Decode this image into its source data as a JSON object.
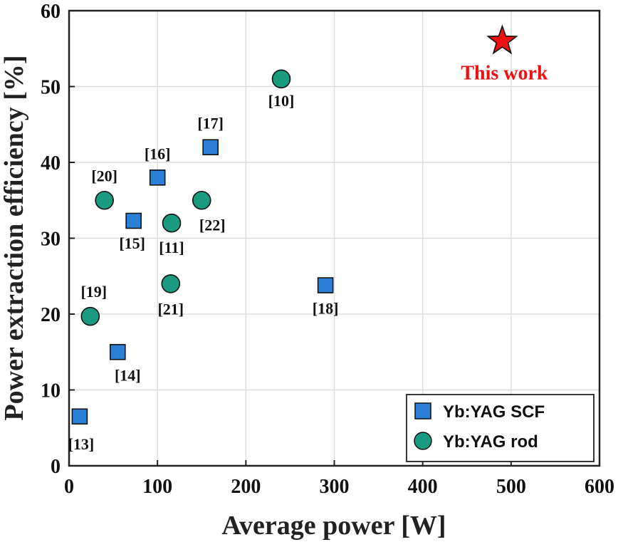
{
  "chart_data": {
    "type": "scatter",
    "title": "",
    "xlabel": "Average power [W]",
    "ylabel": "Power extraction efficiency [%]",
    "xlim": [
      0,
      600
    ],
    "ylim": [
      0,
      60
    ],
    "xticks": [
      0,
      100,
      200,
      300,
      400,
      500,
      600
    ],
    "yticks": [
      0,
      10,
      20,
      30,
      40,
      50,
      60
    ],
    "grid": true,
    "legend_position": "bottom-right",
    "series": [
      {
        "name": "Yb:YAG SCF",
        "marker": "square",
        "color": "#2b7fd4",
        "points": [
          {
            "x": 12,
            "y": 6.5,
            "label": "[13]"
          },
          {
            "x": 55,
            "y": 15,
            "label": "[14]"
          },
          {
            "x": 73,
            "y": 32.3,
            "label": "[15]"
          },
          {
            "x": 100,
            "y": 38,
            "label": "[16]"
          },
          {
            "x": 160,
            "y": 42,
            "label": "[17]"
          },
          {
            "x": 290,
            "y": 23.8,
            "label": "[18]"
          }
        ]
      },
      {
        "name": "Yb:YAG rod",
        "marker": "circle",
        "color": "#1a9a7e",
        "points": [
          {
            "x": 24,
            "y": 19.7,
            "label": "[19]"
          },
          {
            "x": 40,
            "y": 35,
            "label": "[20]"
          },
          {
            "x": 115,
            "y": 24,
            "label": "[21]"
          },
          {
            "x": 116,
            "y": 32,
            "label": "[11]"
          },
          {
            "x": 150,
            "y": 35,
            "label": "[22]"
          },
          {
            "x": 240,
            "y": 51,
            "label": "[10]"
          }
        ]
      }
    ],
    "highlight": {
      "name": "This work",
      "marker": "star",
      "color": "#ee1111",
      "x": 490,
      "y": 56,
      "label": "This work"
    }
  }
}
